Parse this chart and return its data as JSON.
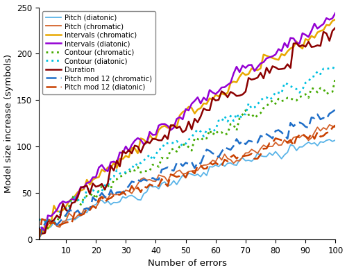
{
  "xlabel": "Number of errors",
  "ylabel": "Model size increase (symbols)",
  "xlim": [
    1,
    100
  ],
  "ylim": [
    0,
    250
  ],
  "xticks": [
    10,
    20,
    30,
    40,
    50,
    60,
    70,
    80,
    90,
    100
  ],
  "yticks": [
    0,
    50,
    100,
    150,
    200,
    250
  ],
  "series": [
    {
      "label": "Pitch (diatonic)",
      "color": "#5ab4e8",
      "linestyle": "solid",
      "linewidth": 1.3,
      "final_val": 107,
      "base_power": 0.75,
      "noise_amp": 3.5,
      "seed": 101
    },
    {
      "label": "Pitch (chromatic)",
      "color": "#d4622a",
      "linestyle": "solid",
      "linewidth": 1.3,
      "final_val": 121,
      "base_power": 0.75,
      "noise_amp": 3.5,
      "seed": 102
    },
    {
      "label": "Intervals (chromatic)",
      "color": "#e8a800",
      "linestyle": "solid",
      "linewidth": 1.8,
      "final_val": 237,
      "base_power": 0.8,
      "noise_amp": 4.0,
      "seed": 103
    },
    {
      "label": "Intervals (diatonic)",
      "color": "#9400d3",
      "linestyle": "solid",
      "linewidth": 1.8,
      "final_val": 244,
      "base_power": 0.8,
      "noise_amp": 4.5,
      "seed": 104
    },
    {
      "label": "Contour (chromatic)",
      "color": "#44aa00",
      "linestyle": "dotted",
      "linewidth": 2.0,
      "final_val": 174,
      "base_power": 0.78,
      "noise_amp": 4.0,
      "seed": 105
    },
    {
      "label": "Contour (diatonic)",
      "color": "#00c0e0",
      "linestyle": "dotted",
      "linewidth": 2.0,
      "final_val": 184,
      "base_power": 0.78,
      "noise_amp": 4.0,
      "seed": 106
    },
    {
      "label": "Duration",
      "color": "#8b0000",
      "linestyle": "solid",
      "linewidth": 1.8,
      "final_val": 228,
      "base_power": 0.82,
      "noise_amp": 6.0,
      "seed": 107
    },
    {
      "label": "Pitch mod 12 (chromatic)",
      "color": "#1e6ec8",
      "linestyle": "dashed",
      "linewidth": 1.8,
      "final_val": 140,
      "base_power": 0.78,
      "noise_amp": 4.5,
      "seed": 108
    },
    {
      "label": "Pitch mod 12 (diatonic)",
      "color": "#c84000",
      "linestyle": "dashed",
      "linewidth": 1.8,
      "final_val": 123,
      "base_power": 0.78,
      "noise_amp": 4.5,
      "seed": 109
    }
  ],
  "legend_fontsize": 7.2,
  "figwidth": 5.0,
  "figheight": 3.92,
  "dpi": 100
}
